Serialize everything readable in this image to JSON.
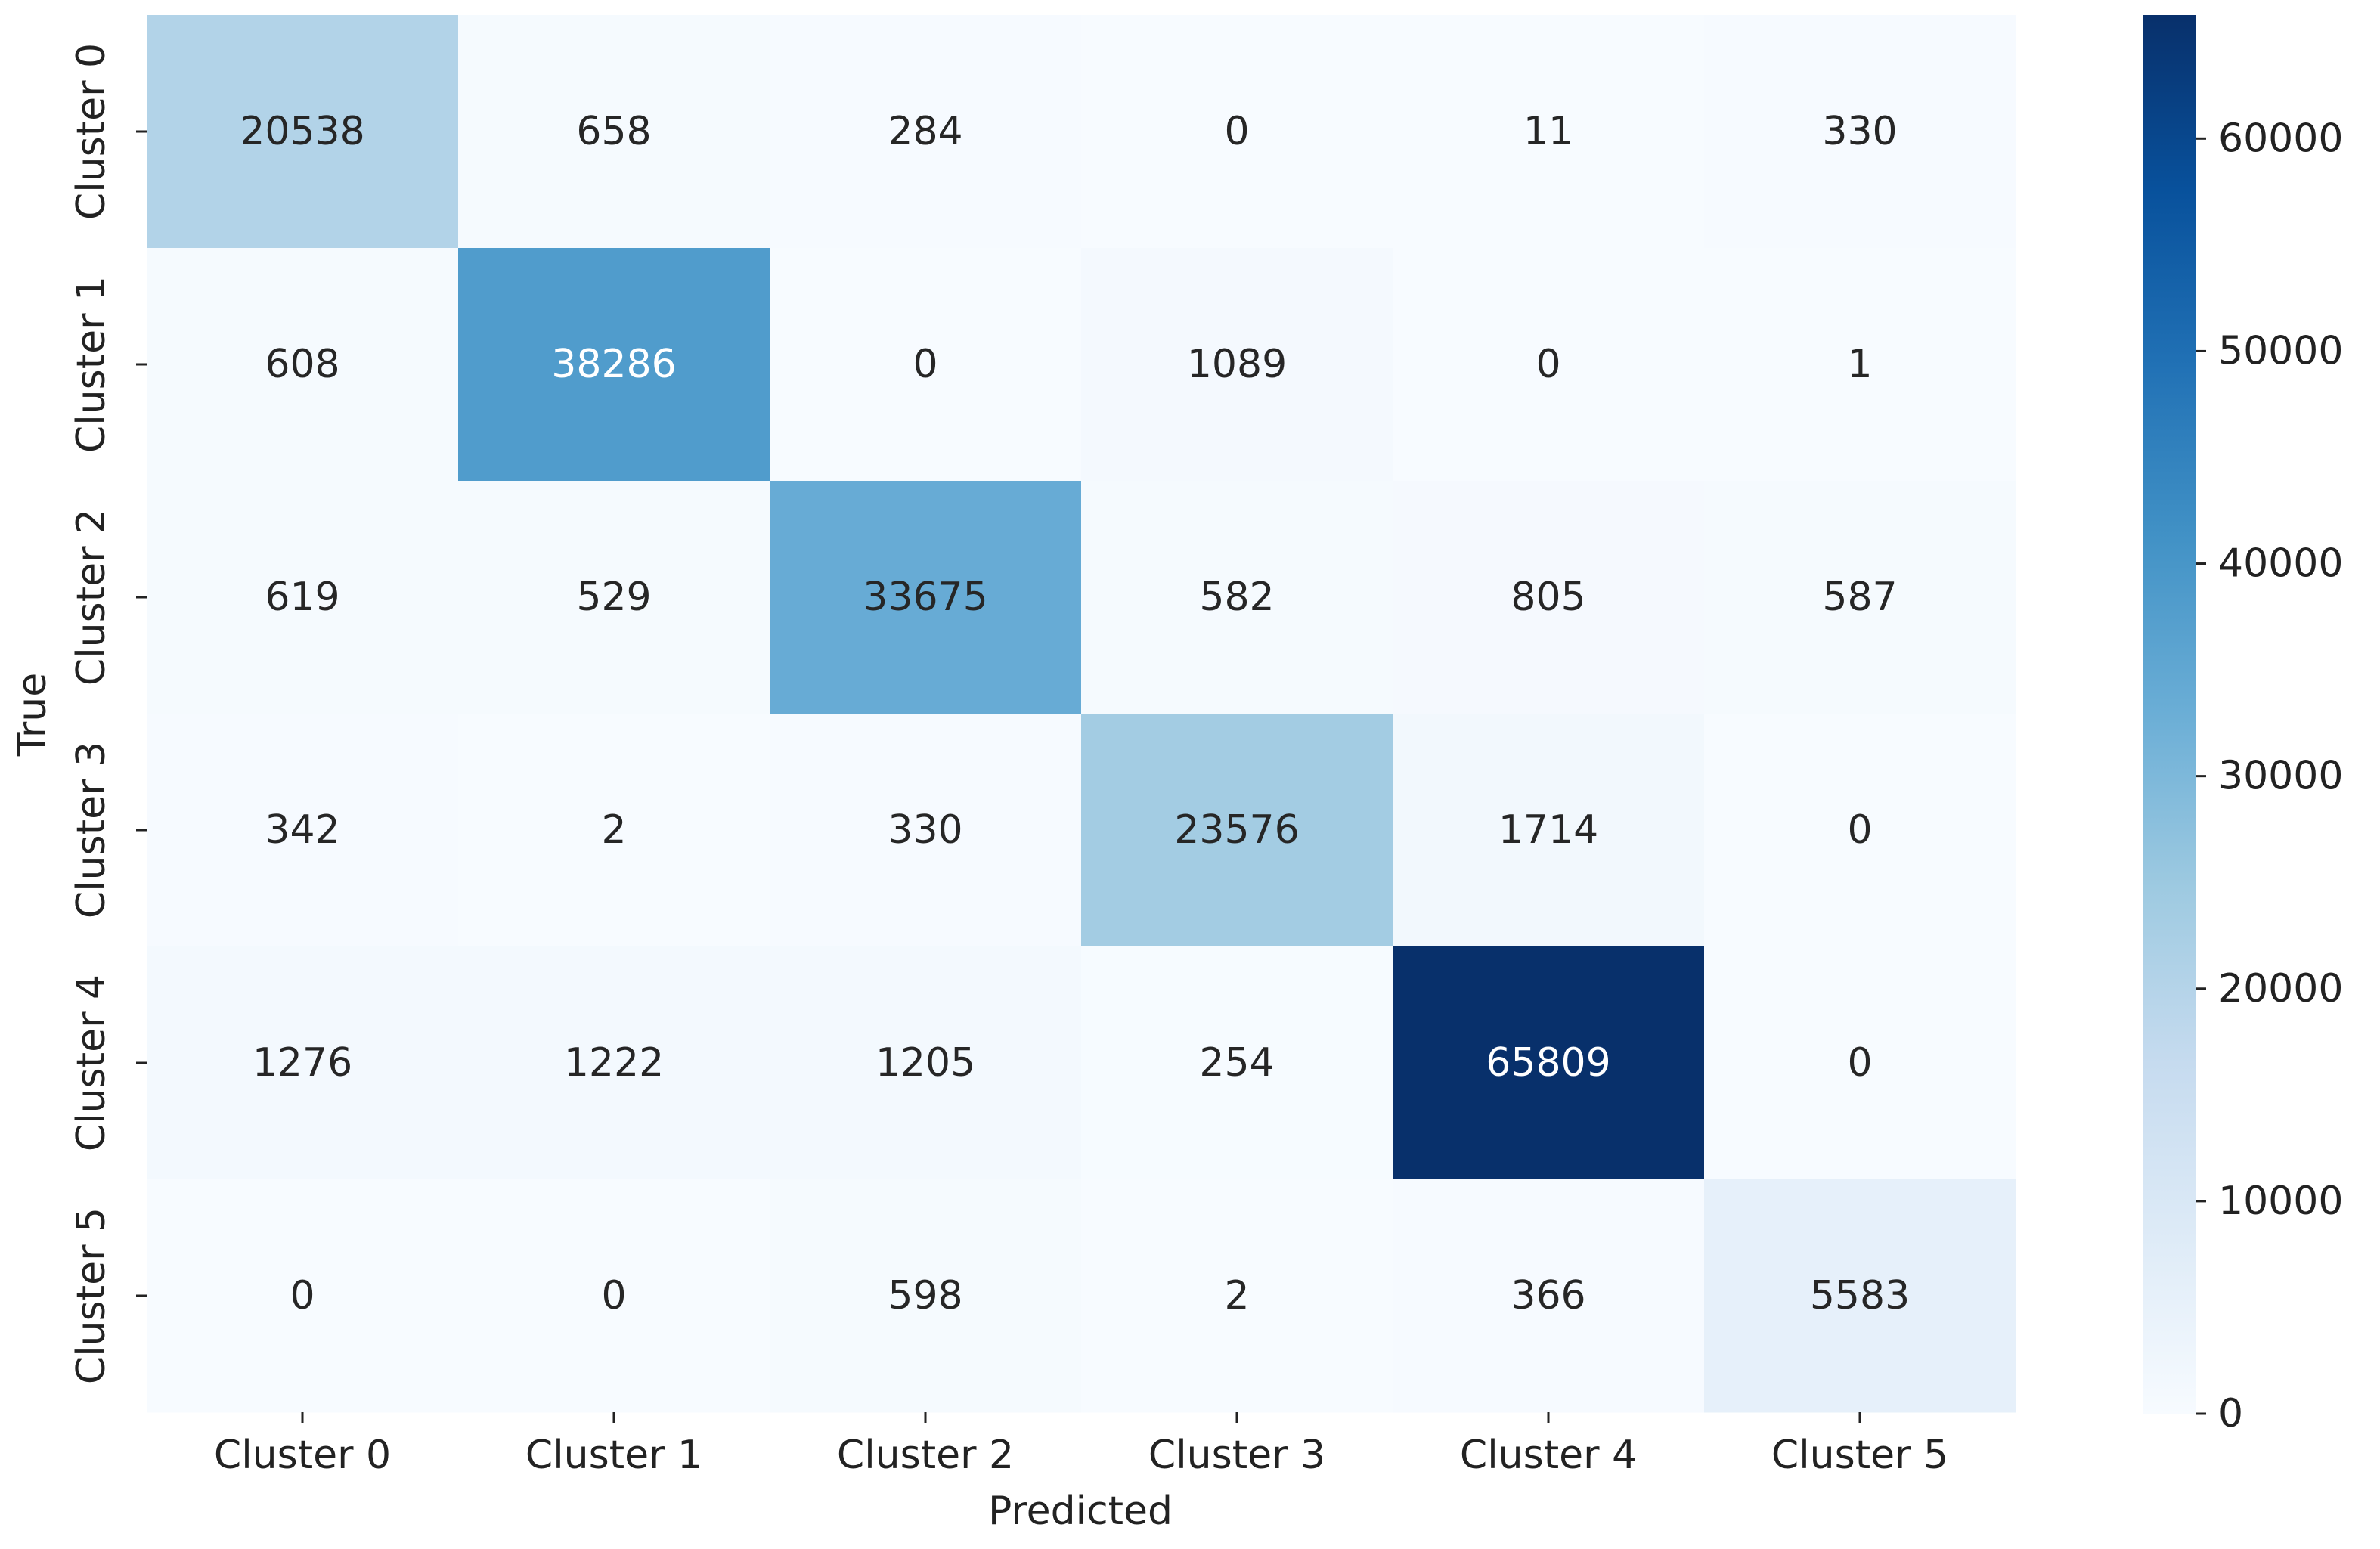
{
  "chart_data": {
    "type": "heatmap",
    "title": "",
    "xlabel": "Predicted",
    "ylabel": "True",
    "x_categories": [
      "Cluster 0",
      "Cluster 1",
      "Cluster 2",
      "Cluster 3",
      "Cluster 4",
      "Cluster 5"
    ],
    "y_categories": [
      "Cluster 0",
      "Cluster 1",
      "Cluster 2",
      "Cluster 3",
      "Cluster 4",
      "Cluster 5"
    ],
    "values": [
      [
        20538,
        658,
        284,
        0,
        11,
        330
      ],
      [
        608,
        38286,
        0,
        1089,
        0,
        1
      ],
      [
        619,
        529,
        33675,
        582,
        805,
        587
      ],
      [
        342,
        2,
        330,
        23576,
        1714,
        0
      ],
      [
        1276,
        1222,
        1205,
        254,
        65809,
        0
      ],
      [
        0,
        0,
        598,
        2,
        366,
        5583
      ]
    ],
    "colormap": "Blues",
    "color_range": [
      0,
      65809
    ],
    "colorbar": {
      "ticks": [
        0,
        10000,
        20000,
        30000,
        40000,
        50000,
        60000
      ],
      "tick_labels": [
        "0",
        "10000",
        "20000",
        "30000",
        "40000",
        "50000",
        "60000"
      ]
    },
    "grid": false,
    "legend": "none"
  }
}
